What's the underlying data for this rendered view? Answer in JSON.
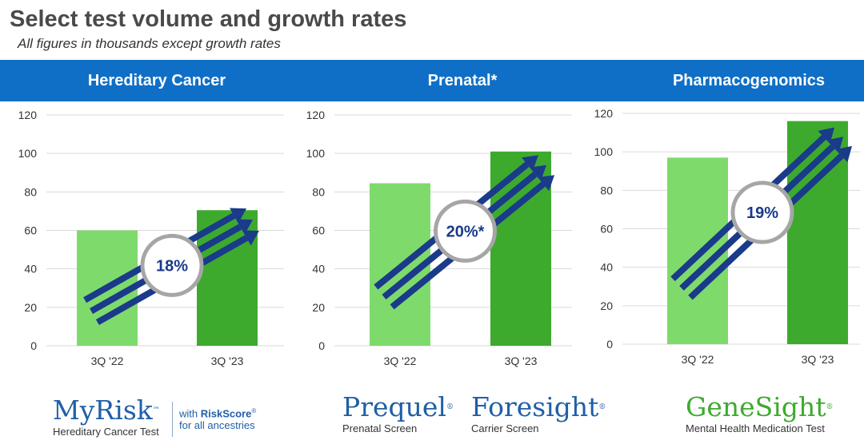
{
  "title": "Select test volume and growth rates",
  "subtitle": "All figures in thousands except growth rates",
  "colors": {
    "band": "#0f6fc6",
    "bar_prior": "#7fda6c",
    "bar_current": "#3daa2e",
    "arrow": "#1a3a8a",
    "myrisk_logo": "#1f5fa8",
    "prequel_logo": "#1f5fa8",
    "foresight_logo": "#1f5fa8",
    "genesight_logo": "#3daa2e"
  },
  "chart_data": [
    {
      "type": "bar",
      "title": "Hereditary Cancer",
      "categories": [
        "3Q '22",
        "3Q '23"
      ],
      "values": [
        60,
        70.5
      ],
      "ylim": [
        0,
        120
      ],
      "yticks": [
        0,
        20,
        40,
        60,
        80,
        100,
        120
      ],
      "grid": true,
      "growth_label": "18%"
    },
    {
      "type": "bar",
      "title": "Prenatal*",
      "categories": [
        "3Q '22",
        "3Q '23"
      ],
      "values": [
        84.5,
        101
      ],
      "ylim": [
        0,
        120
      ],
      "yticks": [
        0,
        20,
        40,
        60,
        80,
        100,
        120
      ],
      "grid": true,
      "growth_label": "20%*"
    },
    {
      "type": "bar",
      "title": "Pharmacogenomics",
      "categories": [
        "3Q '22",
        "3Q '23"
      ],
      "values": [
        97,
        116
      ],
      "ylim": [
        0,
        120
      ],
      "yticks": [
        0,
        20,
        40,
        60,
        80,
        100,
        120
      ],
      "grid": true,
      "growth_label": "19%"
    }
  ],
  "logos": {
    "myrisk": {
      "name": "MyRisk",
      "tm": "™",
      "sub": "Hereditary Cancer Test",
      "tag_prefix": "with",
      "tag_brand": "RiskScore",
      "tag_reg": "®",
      "tag_line2": "for all ancestries"
    },
    "prequel": {
      "name": "Prequel",
      "reg": "®",
      "sub": "Prenatal Screen"
    },
    "foresight": {
      "name": "Foresight",
      "reg": "®",
      "sub": "Carrier Screen"
    },
    "genesight": {
      "name": "GeneSight",
      "reg": "®",
      "sub": "Mental Health Medication Test"
    }
  }
}
